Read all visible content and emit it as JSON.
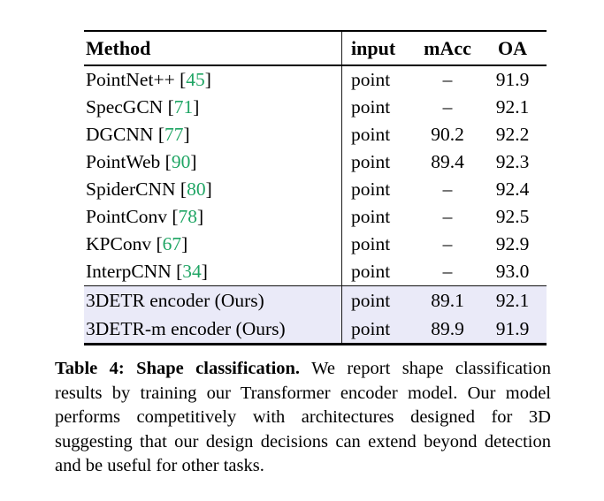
{
  "colors": {
    "citation_green": "#1FA564",
    "highlight_lavender": "#EAEAF8",
    "text_black": "#000000"
  },
  "table": {
    "header": {
      "method": "Method",
      "input": "input",
      "macc": "mAcc",
      "oa": "OA"
    },
    "cite_format": {
      "prefix": " [",
      "suffix": "]"
    },
    "rows": [
      {
        "method": "PointNet++",
        "cite": "45",
        "input": "point",
        "macc": "–",
        "oa": "91.9",
        "highlight": false
      },
      {
        "method": "SpecGCN",
        "cite": "71",
        "input": "point",
        "macc": "–",
        "oa": "92.1",
        "highlight": false
      },
      {
        "method": "DGCNN",
        "cite": "77",
        "input": "point",
        "macc": "90.2",
        "oa": "92.2",
        "highlight": false
      },
      {
        "method": "PointWeb",
        "cite": "90",
        "input": "point",
        "macc": "89.4",
        "oa": "92.3",
        "highlight": false
      },
      {
        "method": "SpiderCNN",
        "cite": "80",
        "input": "point",
        "macc": "–",
        "oa": "92.4",
        "highlight": false
      },
      {
        "method": "PointConv",
        "cite": "78",
        "input": "point",
        "macc": "–",
        "oa": "92.5",
        "highlight": false
      },
      {
        "method": "KPConv",
        "cite": "67",
        "input": "point",
        "macc": "–",
        "oa": "92.9",
        "highlight": false
      },
      {
        "method": "InterpCNN",
        "cite": "34",
        "input": "point",
        "macc": "–",
        "oa": "93.0",
        "highlight": false
      },
      {
        "method": "3DETR encoder (Ours)",
        "cite": null,
        "input": "point",
        "macc": "89.1",
        "oa": "92.1",
        "highlight": true
      },
      {
        "method": "3DETR-m encoder (Ours)",
        "cite": null,
        "input": "point",
        "macc": "89.9",
        "oa": "91.9",
        "highlight": true
      }
    ]
  },
  "caption": {
    "label": "Table 4: Shape classification.",
    "text": " We report shape classification results by training our Transformer encoder model. Our model performs competitively with architectures designed for 3D suggesting that our design decisions can extend beyond detection and be useful for other tasks."
  }
}
